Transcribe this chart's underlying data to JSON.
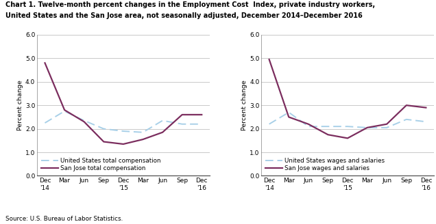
{
  "title_line1": "Chart 1. Twelve-month percent changes in the Employment Cost  Index, private industry workers,",
  "title_line2": "United States and the San Jose area, not seasonally adjusted, December 2014–December 2016",
  "ylabel": "Percent change",
  "source": "Source: U.S. Bureau of Labor Statistics.",
  "x_labels": [
    "Dec\n'14",
    "Mar",
    "Jun",
    "Sep",
    "Dec\n'15",
    "Mar",
    "Jun",
    "Sep",
    "Dec\n'16"
  ],
  "x_positions": [
    0,
    1,
    2,
    3,
    4,
    5,
    6,
    7,
    8
  ],
  "ylim": [
    0.0,
    6.0
  ],
  "yticks": [
    0.0,
    1.0,
    2.0,
    3.0,
    4.0,
    5.0,
    6.0
  ],
  "left_chart": {
    "us_line": [
      2.25,
      2.75,
      2.35,
      2.0,
      1.9,
      1.85,
      2.35,
      2.2,
      2.2
    ],
    "sj_line": [
      4.8,
      2.8,
      2.3,
      1.45,
      1.35,
      1.55,
      1.85,
      2.6,
      2.6
    ],
    "legend1": "United States total compensation",
    "legend2": "San Jose total compensation"
  },
  "right_chart": {
    "us_line": [
      2.2,
      2.7,
      2.1,
      2.1,
      2.1,
      2.05,
      2.05,
      2.4,
      2.3
    ],
    "sj_line": [
      4.95,
      2.5,
      2.2,
      1.75,
      1.6,
      2.05,
      2.2,
      3.0,
      2.9
    ],
    "legend1": "United States wages and salaries",
    "legend2": "San Jose wages and salaries"
  },
  "us_color": "#a8d0e8",
  "sj_color": "#7b2d5e",
  "background_color": "#ffffff",
  "grid_color": "#c0c0c0",
  "title_fontsize": 7.0,
  "label_fontsize": 6.8,
  "tick_fontsize": 6.5,
  "legend_fontsize": 6.3,
  "source_fontsize": 6.3
}
